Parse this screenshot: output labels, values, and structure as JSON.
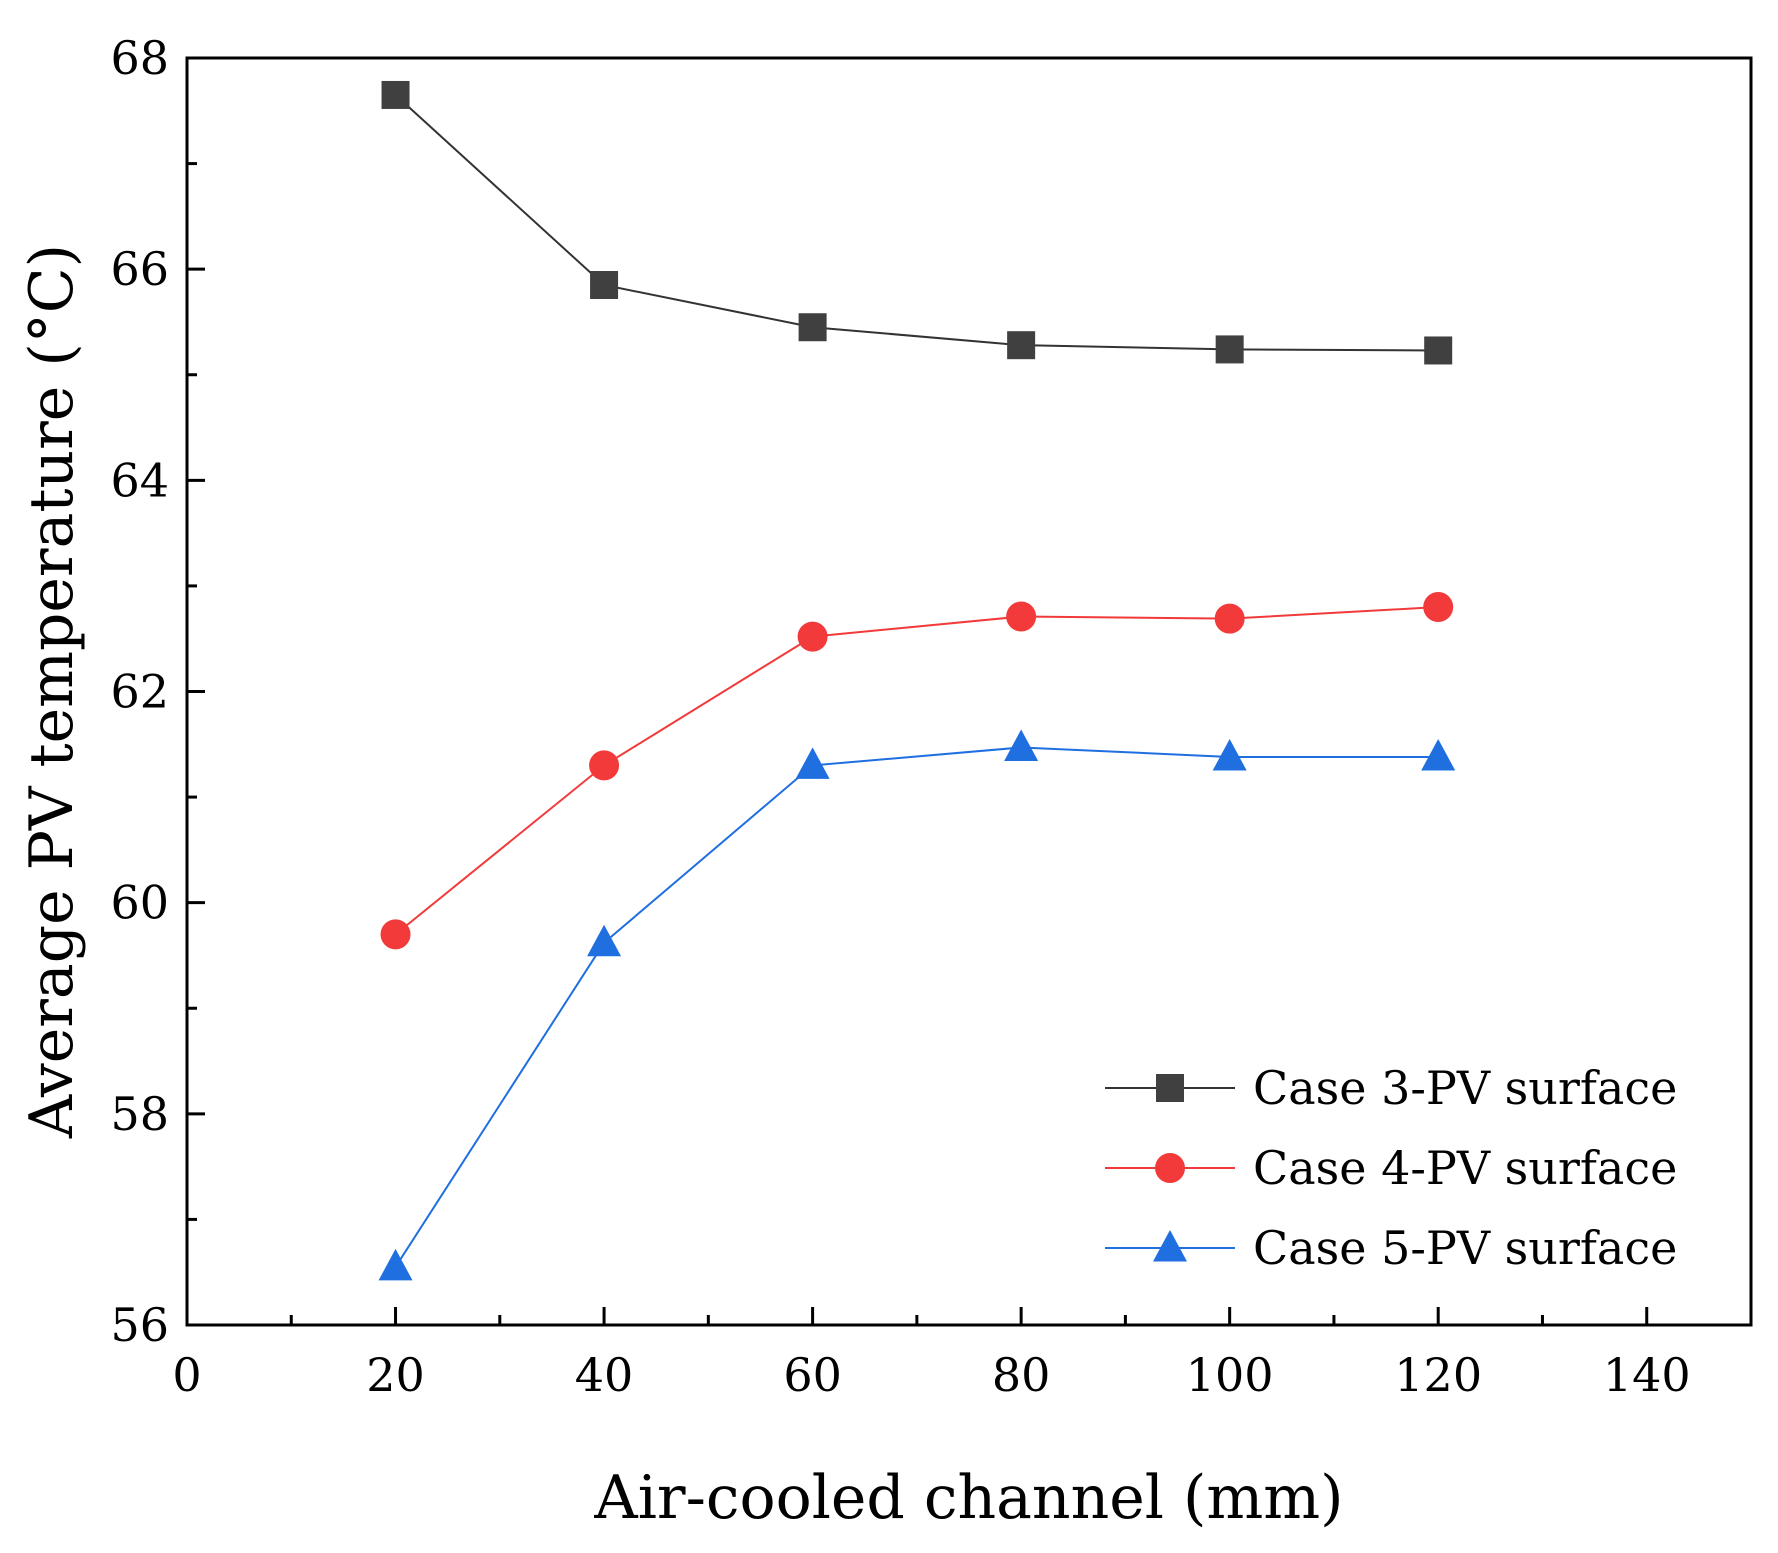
{
  "chart_data": {
    "type": "line",
    "xlabel": "Air-cooled channel (mm)",
    "ylabel": "Average PV temperature (°C)",
    "xlim": [
      0,
      150
    ],
    "ylim": [
      56,
      68
    ],
    "x_ticks": [
      0,
      20,
      40,
      60,
      80,
      100,
      120,
      140
    ],
    "x_minor_ticks": [
      10,
      30,
      50,
      70,
      90,
      110,
      130
    ],
    "y_ticks": [
      56,
      58,
      60,
      62,
      64,
      66,
      68
    ],
    "y_minor_ticks": [
      57,
      59,
      61,
      63,
      65,
      67
    ],
    "grid": false,
    "legend_position": "bottom-right",
    "x": [
      20,
      40,
      60,
      80,
      100,
      120
    ],
    "series": [
      {
        "name": "Case 3-PV surface",
        "marker": "square",
        "color": "#404040",
        "line_color": "#333333",
        "values": [
          67.65,
          65.85,
          65.45,
          65.28,
          65.24,
          65.23
        ]
      },
      {
        "name": "Case 4-PV surface",
        "marker": "circle",
        "color": "#f23a3a",
        "line_color": "#f23a3a",
        "values": [
          59.7,
          61.3,
          62.52,
          62.71,
          62.69,
          62.8
        ]
      },
      {
        "name": "Case 5-PV surface",
        "marker": "triangle",
        "color": "#1f6fe0",
        "line_color": "#1f6fe0",
        "values": [
          56.55,
          59.62,
          61.3,
          61.47,
          61.38,
          61.38
        ]
      }
    ]
  }
}
